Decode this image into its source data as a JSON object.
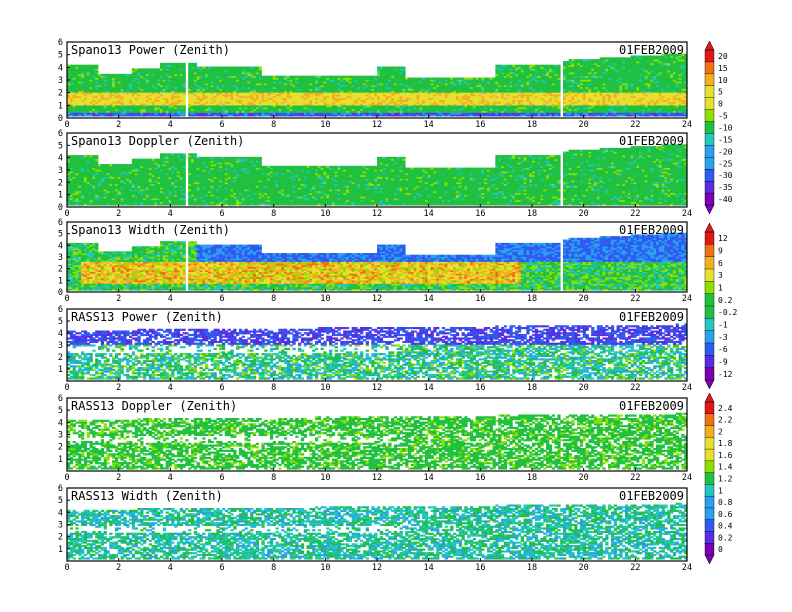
{
  "chart_data": [
    {
      "type": "heatmap",
      "title": "Spano13 Power (Zenith)",
      "date": "01FEB2009",
      "x_ticks": [
        0,
        2,
        4,
        6,
        8,
        10,
        12,
        14,
        16,
        18,
        20,
        22,
        24
      ],
      "y_ticks": [
        0,
        1,
        2,
        3,
        4,
        5,
        6
      ],
      "xlim": [
        0,
        24
      ],
      "ylim": [
        0,
        6
      ],
      "colorbar_group": 0
    },
    {
      "type": "heatmap",
      "title": "Spano13 Doppler (Zenith)",
      "date": "01FEB2009",
      "x_ticks": [
        0,
        2,
        4,
        6,
        8,
        10,
        12,
        14,
        16,
        18,
        20,
        22,
        24
      ],
      "y_ticks": [
        0,
        1,
        2,
        3,
        4,
        5,
        6
      ],
      "xlim": [
        0,
        24
      ],
      "ylim": [
        0,
        6
      ],
      "colorbar_group": 0
    },
    {
      "type": "heatmap",
      "title": "Spano13 Width (Zenith)",
      "date": "01FEB2009",
      "x_ticks": [
        0,
        2,
        4,
        6,
        8,
        10,
        12,
        14,
        16,
        18,
        20,
        22,
        24
      ],
      "y_ticks": [
        0,
        1,
        2,
        3,
        4,
        5,
        6
      ],
      "xlim": [
        0,
        24
      ],
      "ylim": [
        0,
        6
      ],
      "colorbar_group": 1
    },
    {
      "type": "heatmap",
      "title": "RASS13 Power (Zenith)",
      "date": "01FEB2009",
      "x_ticks": [
        0,
        2,
        4,
        6,
        8,
        10,
        12,
        14,
        16,
        18,
        20,
        22,
        24
      ],
      "y_ticks": [
        1,
        2,
        3,
        4,
        5,
        6
      ],
      "xlim": [
        0,
        24
      ],
      "ylim": [
        0,
        6
      ],
      "colorbar_group": 1
    },
    {
      "type": "heatmap",
      "title": "RASS13 Doppler (Zenith)",
      "date": "01FEB2009",
      "x_ticks": [
        0,
        2,
        4,
        6,
        8,
        10,
        12,
        14,
        16,
        18,
        20,
        22,
        24
      ],
      "y_ticks": [
        1,
        2,
        3,
        4,
        5,
        6
      ],
      "xlim": [
        0,
        24
      ],
      "ylim": [
        0,
        6
      ],
      "colorbar_group": 2
    },
    {
      "type": "heatmap",
      "title": "RASS13 Width (Zenith)",
      "date": "01FEB2009",
      "x_ticks": [
        0,
        2,
        4,
        6,
        8,
        10,
        12,
        14,
        16,
        18,
        20,
        22,
        24
      ],
      "y_ticks": [
        1,
        2,
        3,
        4,
        5,
        6
      ],
      "xlim": [
        0,
        24
      ],
      "ylim": [
        0,
        6
      ],
      "colorbar_group": 2
    }
  ],
  "colorbars": [
    {
      "labels": [
        "20",
        "15",
        "10",
        "5",
        "0",
        "-5",
        "-10",
        "-15",
        "-20",
        "-25",
        "-30",
        "-35",
        "-40"
      ]
    },
    {
      "labels": [
        "12",
        "9",
        "6",
        "3",
        "1",
        "0.2",
        "-0.2",
        "-1",
        "-3",
        "-6",
        "-9",
        "-12"
      ]
    },
    {
      "labels": [
        "2.4",
        "2.2",
        "2",
        "1.8",
        "1.6",
        "1.4",
        "1.2",
        "1",
        "0.8",
        "0.6",
        "0.4",
        "0.2",
        "0"
      ]
    }
  ],
  "colors": {
    "palette": [
      "#7a00b0",
      "#5a2ee0",
      "#2f5cf0",
      "#2aa0f0",
      "#22c8c0",
      "#20c040",
      "#8ee000",
      "#e8e030",
      "#f0b020",
      "#f07018",
      "#e01818"
    ],
    "background": "#ffffff",
    "frame": "#000000"
  }
}
